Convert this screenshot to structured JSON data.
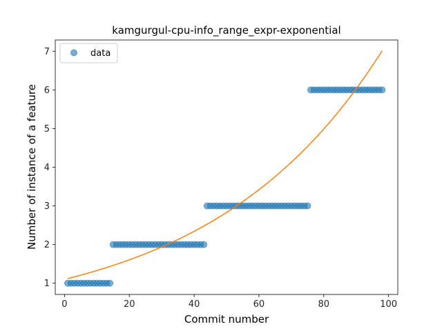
{
  "chart_data": {
    "type": "scatter",
    "title": "kamgurgul-cpu-info_range_expr-exponential",
    "xlabel": "Commit number",
    "ylabel": "Number of instance of a feature",
    "xlim": [
      -2.85,
      102.85
    ],
    "ylim": [
      0.71,
      7.29
    ],
    "xticks": [
      0,
      20,
      40,
      60,
      80,
      100
    ],
    "yticks": [
      1,
      2,
      3,
      4,
      5,
      6,
      7
    ],
    "grid": false,
    "legend": {
      "placement": "upper-left",
      "entries": [
        "data"
      ]
    },
    "colors": {
      "data": "#1f77b4",
      "fit": "#ff7f0e"
    },
    "series": [
      {
        "name": "data",
        "kind": "scatter",
        "segments": [
          {
            "x_start": 1,
            "x_end": 14,
            "y": 1
          },
          {
            "x_start": 15,
            "x_end": 43,
            "y": 2
          },
          {
            "x_start": 44,
            "x_end": 75,
            "y": 3
          },
          {
            "x_start": 76,
            "x_end": 98,
            "y": 6
          }
        ]
      },
      {
        "kind": "line",
        "model": "exponential",
        "a": 1.1,
        "b": 0.0189,
        "x_range": [
          1,
          98
        ]
      }
    ]
  }
}
